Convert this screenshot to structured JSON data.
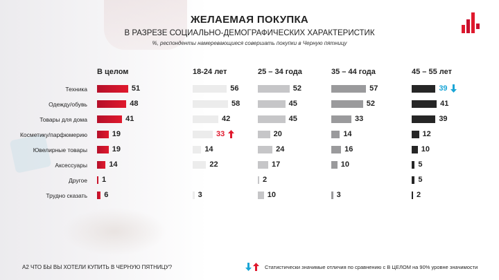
{
  "header": {
    "title": "ЖЕЛАЕМАЯ ПОКУПКА",
    "subtitle": "В РАЗРЕЗЕ СОЦИАЛЬНО-ДЕМОГРАФИЧЕСКИХ ХАРАКТЕРИСТИК",
    "note": "%,  респонденты намеревающиеся совершать покупки в Черную пятницу"
  },
  "footer": {
    "question": "A2 ЧТО БЫ ВЫ ХОТЕЛИ КУПИТЬ  В ЧЕРНУЮ ПЯТНИЦУ?",
    "legend": "Статистически  значимые отличия  по сравнению с В ЦЕЛОМ на 90% уровне значимости"
  },
  "colors": {
    "up": "#e0192d",
    "down": "#1aa5d6",
    "group_0": "#e0192d",
    "group_1": "#ececec",
    "group_2": "#c6c6c8",
    "group_3": "#9a9a9c",
    "group_4": "#262626"
  },
  "chart_data": {
    "type": "bar",
    "categories": [
      "Техника",
      "Одежду/обувь",
      "Товары для дома",
      "Косметику/парфюмерию",
      "Ювелирные товары",
      "Аксессуары",
      "Другое",
      "Трудно  сказать"
    ],
    "series": [
      {
        "name": "В целом",
        "values": [
          51,
          48,
          41,
          19,
          19,
          14,
          1,
          6
        ],
        "sig": [
          null,
          null,
          null,
          null,
          null,
          null,
          null,
          null
        ]
      },
      {
        "name": "18-24 лет",
        "values": [
          56,
          58,
          42,
          33,
          14,
          22,
          null,
          3
        ],
        "sig": [
          null,
          null,
          null,
          "up",
          null,
          null,
          null,
          null
        ]
      },
      {
        "name": "25 – 34 года",
        "values": [
          52,
          45,
          45,
          20,
          24,
          17,
          2,
          10
        ],
        "sig": [
          null,
          null,
          null,
          null,
          null,
          null,
          null,
          null
        ]
      },
      {
        "name": "35 – 44 года",
        "values": [
          57,
          52,
          33,
          14,
          16,
          10,
          null,
          3
        ],
        "sig": [
          null,
          null,
          null,
          null,
          null,
          null,
          null,
          null
        ]
      },
      {
        "name": "45 – 55 лет",
        "values": [
          39,
          41,
          39,
          12,
          10,
          5,
          5,
          2
        ],
        "sig": [
          "down",
          null,
          null,
          null,
          null,
          null,
          null,
          null
        ]
      }
    ]
  }
}
